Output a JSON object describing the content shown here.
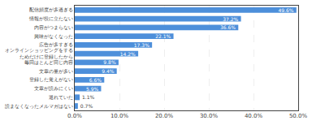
{
  "chart_data": {
    "type": "bar",
    "orientation": "horizontal",
    "categories": [
      "読まなくなったメルマガはない",
      "退れていた",
      "文章が読みにくい",
      "登録した覚えがない",
      "文章の量が多い",
      "毎回はとんど同じ内容",
      "オンラインショッピングをする\nためだけに登録したから",
      "広告が多すぎる",
      "興味がなくなった",
      "内容がつまらない",
      "情報が役に立たない",
      "配信頻度が多過ぎる"
    ],
    "values": [
      0.7,
      1.1,
      5.9,
      6.6,
      9.4,
      9.8,
      14.2,
      17.3,
      22.1,
      36.6,
      37.2,
      49.6
    ],
    "value_labels": [
      "0.7%",
      "1.1%",
      "5.9%",
      "6.6%",
      "9.4%",
      "9.8%",
      "14.2%",
      "17.3%",
      "22.1%",
      "36.6%",
      "37.2%",
      "49.6%"
    ],
    "data_labels": true,
    "color": "#4d8fda",
    "xlim": [
      0,
      50.0
    ],
    "xticks": [
      {
        "value": 0.0,
        "label": "0.0%"
      },
      {
        "value": 10.0,
        "label": "10.0%"
      },
      {
        "value": 20.0,
        "label": "20.0%"
      },
      {
        "value": 30.0,
        "label": "30.0%"
      },
      {
        "value": 40.0,
        "label": "40.0%"
      },
      {
        "value": 50.0,
        "label": "50.0%"
      }
    ],
    "grid": true
  }
}
